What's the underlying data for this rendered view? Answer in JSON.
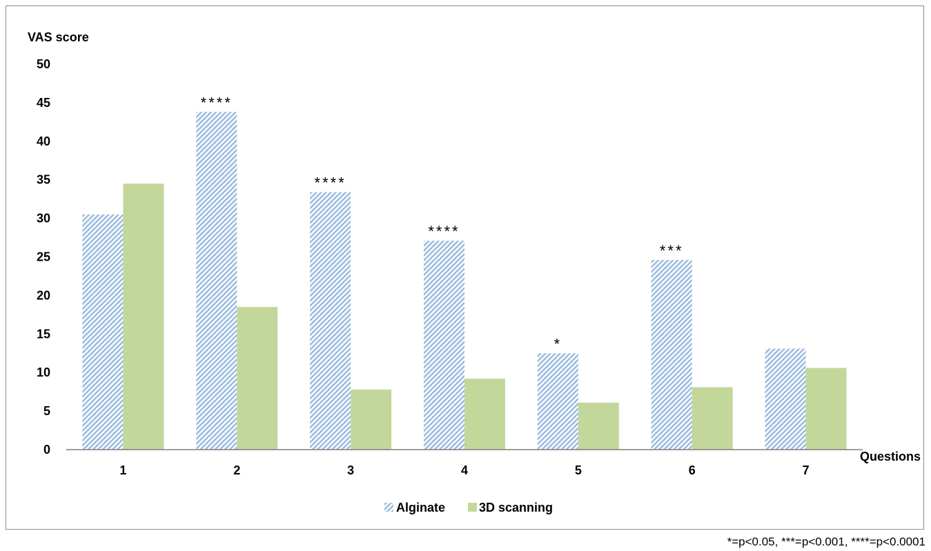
{
  "chart_data": {
    "type": "bar",
    "categories": [
      "1",
      "2",
      "3",
      "4",
      "5",
      "6",
      "7"
    ],
    "series": [
      {
        "name": "Alginate",
        "values": [
          30.5,
          43.8,
          33.4,
          27.1,
          12.5,
          24.6,
          13.1
        ],
        "color": "#9bbce0",
        "pattern": "diagonal-hatch"
      },
      {
        "name": "3D scanning",
        "values": [
          34.5,
          18.5,
          7.8,
          9.2,
          6.1,
          8.1,
          10.6
        ],
        "color": "#c4d79b",
        "pattern": "solid"
      }
    ],
    "ylabel": "VAS score",
    "xlabel": "Questions",
    "ylim": [
      0,
      50
    ],
    "yticks": [
      0,
      5,
      10,
      15,
      20,
      25,
      30,
      35,
      40,
      45,
      50
    ],
    "grid": false,
    "legend_position": "bottom",
    "annotations": [
      "",
      "****",
      "****",
      "****",
      "*",
      "***",
      ""
    ]
  },
  "footnote": "*=p<0.05, ***=p<0.001, ****=p<0.0001"
}
